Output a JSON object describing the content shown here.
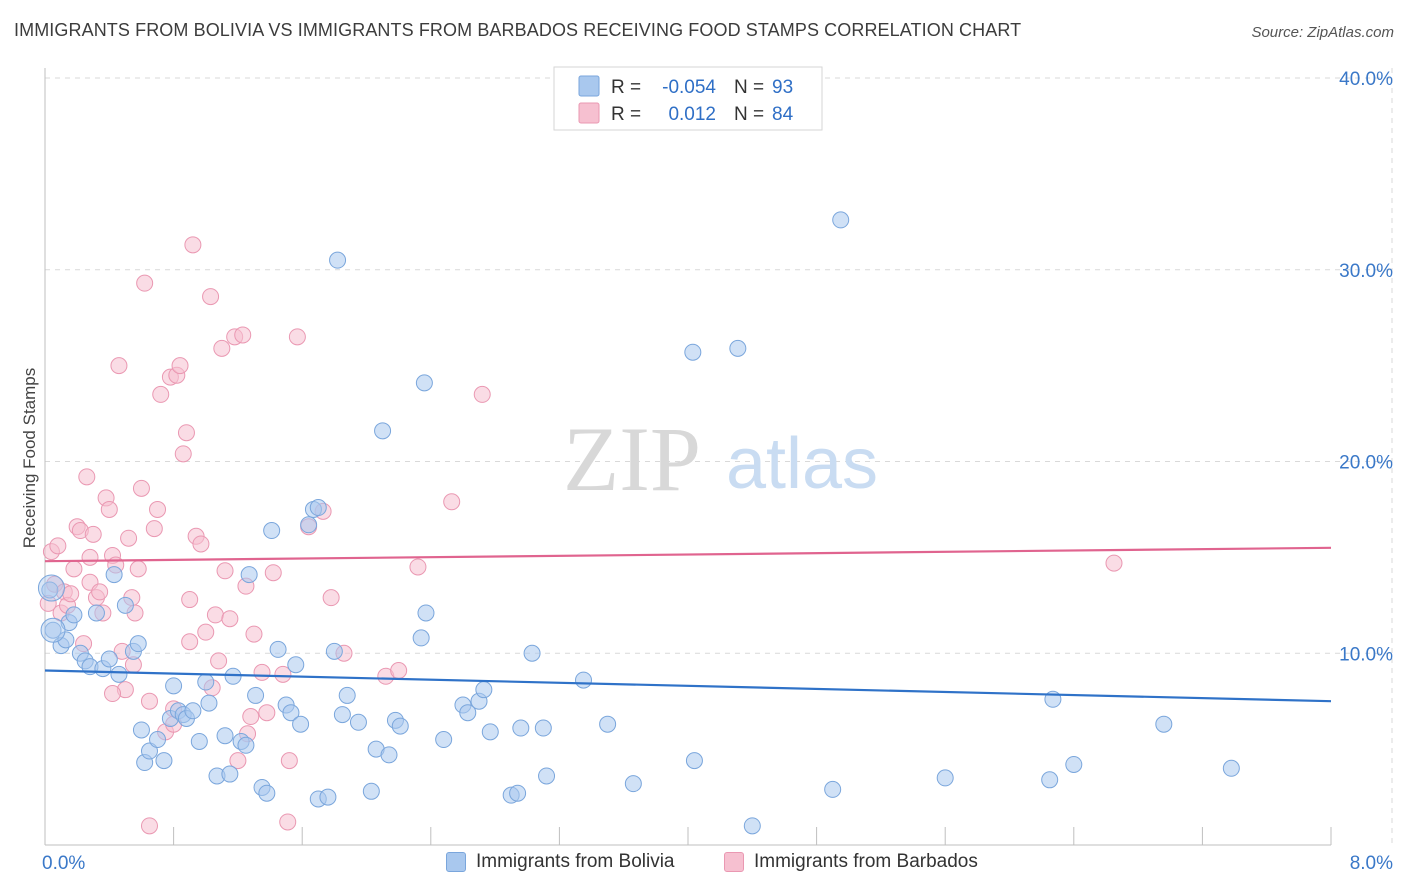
{
  "header": {
    "title": "IMMIGRANTS FROM BOLIVIA VS IMMIGRANTS FROM BARBADOS RECEIVING FOOD STAMPS CORRELATION CHART",
    "source": "Source: ZipAtlas.com"
  },
  "watermark": {
    "zip": "ZIP",
    "atlas": "atlas"
  },
  "stats_legend": [
    {
      "r_label": "R =",
      "r_value": "-0.054",
      "n_label": "N =",
      "n_value": "93",
      "series": "Immigrants from Bolivia"
    },
    {
      "r_label": "R =",
      "r_value": "0.012",
      "n_label": "N =",
      "n_value": "84",
      "series": "Immigrants from Barbados"
    }
  ],
  "colors": {
    "bolivia_fill": "#a9c8ee",
    "bolivia_stroke": "#7aa6dc",
    "bolivia_line": "#2f72c8",
    "barbados_fill": "#f6c0d0",
    "barbados_stroke": "#ea98b2",
    "barbados_line": "#e0648f",
    "axis_text": "#3a78c8",
    "grid": "#d9d9d9"
  },
  "chart_data": {
    "type": "scatter",
    "title": "IMMIGRANTS FROM BOLIVIA VS IMMIGRANTS FROM BARBADOS RECEIVING FOOD STAMPS CORRELATION CHART",
    "xlabel": "",
    "ylabel": "Receiving Food Stamps",
    "xlim": [
      0,
      8
    ],
    "ylim": [
      0,
      40
    ],
    "x_ticks": [
      0,
      0.8,
      1.6,
      2.4,
      3.2,
      4.0,
      4.8,
      5.6,
      6.4,
      7.2,
      8.0
    ],
    "x_tick_labels": [
      {
        "value": 0,
        "label": "0.0%"
      },
      {
        "value": 8,
        "label": "8.0%"
      }
    ],
    "y_ticks": [
      {
        "value": 10,
        "label": "10.0%"
      },
      {
        "value": 20,
        "label": "20.0%"
      },
      {
        "value": 30,
        "label": "30.0%"
      },
      {
        "value": 40,
        "label": "40.0%"
      }
    ],
    "legend": [
      "Immigrants from Bolivia",
      "Immigrants from Barbados"
    ],
    "series": [
      {
        "name": "Immigrants from Bolivia",
        "trend": {
          "x": [
            0,
            8
          ],
          "y": [
            9.1,
            7.5
          ]
        },
        "points": [
          [
            0.03,
            13.3
          ],
          [
            0.05,
            11.2
          ],
          [
            0.1,
            10.4
          ],
          [
            0.13,
            10.7
          ],
          [
            0.15,
            11.6
          ],
          [
            0.18,
            12.0
          ],
          [
            0.22,
            10.0
          ],
          [
            0.25,
            9.6
          ],
          [
            0.28,
            9.3
          ],
          [
            0.32,
            12.1
          ],
          [
            0.36,
            9.2
          ],
          [
            0.4,
            9.7
          ],
          [
            0.43,
            14.1
          ],
          [
            0.46,
            8.9
          ],
          [
            0.5,
            12.5
          ],
          [
            0.55,
            10.1
          ],
          [
            0.58,
            10.5
          ],
          [
            0.6,
            6.0
          ],
          [
            0.62,
            4.3
          ],
          [
            0.65,
            4.9
          ],
          [
            0.7,
            5.5
          ],
          [
            0.74,
            4.4
          ],
          [
            0.78,
            6.6
          ],
          [
            0.8,
            8.3
          ],
          [
            0.83,
            7.0
          ],
          [
            0.86,
            6.8
          ],
          [
            0.88,
            6.6
          ],
          [
            0.92,
            7.0
          ],
          [
            0.96,
            5.4
          ],
          [
            1.0,
            8.5
          ],
          [
            1.02,
            7.4
          ],
          [
            1.07,
            3.6
          ],
          [
            1.12,
            5.7
          ],
          [
            1.15,
            3.7
          ],
          [
            1.17,
            8.8
          ],
          [
            1.22,
            5.4
          ],
          [
            1.25,
            5.2
          ],
          [
            1.27,
            14.1
          ],
          [
            1.31,
            7.8
          ],
          [
            1.35,
            3.0
          ],
          [
            1.38,
            2.7
          ],
          [
            1.41,
            16.4
          ],
          [
            1.45,
            10.2
          ],
          [
            1.5,
            7.3
          ],
          [
            1.53,
            6.9
          ],
          [
            1.56,
            9.4
          ],
          [
            1.59,
            6.3
          ],
          [
            1.64,
            16.7
          ],
          [
            1.67,
            17.5
          ],
          [
            1.7,
            2.4
          ],
          [
            1.76,
            2.5
          ],
          [
            1.8,
            10.1
          ],
          [
            1.85,
            6.8
          ],
          [
            1.88,
            7.8
          ],
          [
            1.95,
            6.4
          ],
          [
            2.03,
            2.8
          ],
          [
            2.06,
            5.0
          ],
          [
            2.1,
            21.6
          ],
          [
            2.14,
            4.7
          ],
          [
            2.18,
            6.5
          ],
          [
            2.21,
            6.2
          ],
          [
            2.34,
            10.8
          ],
          [
            2.37,
            12.1
          ],
          [
            2.48,
            5.5
          ],
          [
            2.6,
            7.3
          ],
          [
            2.63,
            6.9
          ],
          [
            2.7,
            7.5
          ],
          [
            2.73,
            8.1
          ],
          [
            2.77,
            5.9
          ],
          [
            2.9,
            2.6
          ],
          [
            2.94,
            2.7
          ],
          [
            2.96,
            6.1
          ],
          [
            3.03,
            10.0
          ],
          [
            3.1,
            6.1
          ],
          [
            3.12,
            3.6
          ],
          [
            3.35,
            8.6
          ],
          [
            3.5,
            6.3
          ],
          [
            3.66,
            3.2
          ],
          [
            4.04,
            4.4
          ],
          [
            4.03,
            25.7
          ],
          [
            4.31,
            25.9
          ],
          [
            4.4,
            1.0
          ],
          [
            4.9,
            2.9
          ],
          [
            4.95,
            32.6
          ],
          [
            5.6,
            3.5
          ],
          [
            6.25,
            3.4
          ],
          [
            6.27,
            7.6
          ],
          [
            6.4,
            4.2
          ],
          [
            6.96,
            6.3
          ],
          [
            7.38,
            4.0
          ],
          [
            1.82,
            30.5
          ],
          [
            2.36,
            24.1
          ],
          [
            1.7,
            17.6
          ]
        ]
      },
      {
        "name": "Immigrants from Barbados",
        "trend": {
          "x": [
            0,
            8
          ],
          "y": [
            14.8,
            15.5
          ]
        },
        "points": [
          [
            0.02,
            12.6
          ],
          [
            0.04,
            15.3
          ],
          [
            0.06,
            13.6
          ],
          [
            0.08,
            15.6
          ],
          [
            0.1,
            12.1
          ],
          [
            0.12,
            13.2
          ],
          [
            0.14,
            12.5
          ],
          [
            0.16,
            13.1
          ],
          [
            0.18,
            14.4
          ],
          [
            0.2,
            16.6
          ],
          [
            0.22,
            16.4
          ],
          [
            0.24,
            10.5
          ],
          [
            0.26,
            19.2
          ],
          [
            0.28,
            13.7
          ],
          [
            0.3,
            16.2
          ],
          [
            0.32,
            12.9
          ],
          [
            0.34,
            13.2
          ],
          [
            0.36,
            12.1
          ],
          [
            0.38,
            18.1
          ],
          [
            0.4,
            17.5
          ],
          [
            0.42,
            15.1
          ],
          [
            0.44,
            14.6
          ],
          [
            0.46,
            25.0
          ],
          [
            0.48,
            10.1
          ],
          [
            0.5,
            8.1
          ],
          [
            0.52,
            16.0
          ],
          [
            0.54,
            12.9
          ],
          [
            0.56,
            12.1
          ],
          [
            0.58,
            14.4
          ],
          [
            0.6,
            18.6
          ],
          [
            0.62,
            29.3
          ],
          [
            0.65,
            7.5
          ],
          [
            0.68,
            16.5
          ],
          [
            0.7,
            17.5
          ],
          [
            0.72,
            23.5
          ],
          [
            0.75,
            5.9
          ],
          [
            0.78,
            24.4
          ],
          [
            0.8,
            7.1
          ],
          [
            0.82,
            24.5
          ],
          [
            0.84,
            25.0
          ],
          [
            0.86,
            20.4
          ],
          [
            0.88,
            21.5
          ],
          [
            0.9,
            12.8
          ],
          [
            0.92,
            31.3
          ],
          [
            0.94,
            16.1
          ],
          [
            0.97,
            15.7
          ],
          [
            1.0,
            11.1
          ],
          [
            1.03,
            28.6
          ],
          [
            1.06,
            12.0
          ],
          [
            1.08,
            9.6
          ],
          [
            1.1,
            25.9
          ],
          [
            1.12,
            14.3
          ],
          [
            1.15,
            11.8
          ],
          [
            1.18,
            26.5
          ],
          [
            1.2,
            4.4
          ],
          [
            1.23,
            26.6
          ],
          [
            1.26,
            5.8
          ],
          [
            1.28,
            6.7
          ],
          [
            1.3,
            11.0
          ],
          [
            1.35,
            9.0
          ],
          [
            1.38,
            6.9
          ],
          [
            1.42,
            14.2
          ],
          [
            1.48,
            8.9
          ],
          [
            1.52,
            4.4
          ],
          [
            1.57,
            26.5
          ],
          [
            1.64,
            16.6
          ],
          [
            1.73,
            17.4
          ],
          [
            1.86,
            10.0
          ],
          [
            2.12,
            8.8
          ],
          [
            2.2,
            9.1
          ],
          [
            2.32,
            14.5
          ],
          [
            2.53,
            17.9
          ],
          [
            2.72,
            23.5
          ],
          [
            0.65,
            1.0
          ],
          [
            1.51,
            1.2
          ],
          [
            0.28,
            15.0
          ],
          [
            0.42,
            7.9
          ],
          [
            0.55,
            9.4
          ],
          [
            0.8,
            6.3
          ],
          [
            0.9,
            10.6
          ],
          [
            1.04,
            8.2
          ],
          [
            1.25,
            13.5
          ],
          [
            6.65,
            14.7
          ],
          [
            1.78,
            12.9
          ]
        ]
      }
    ]
  },
  "bottom_legend": [
    {
      "label": "Immigrants from Bolivia"
    },
    {
      "label": "Immigrants from Barbados"
    }
  ]
}
